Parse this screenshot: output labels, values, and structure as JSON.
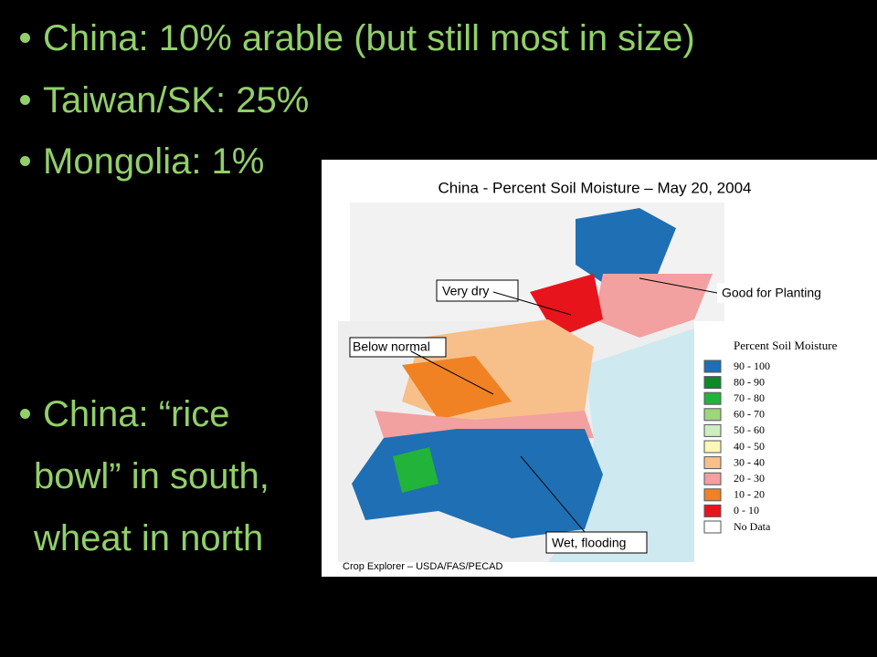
{
  "slide": {
    "bullets": [
      "China: 10% arable (but still most in size)",
      "Taiwan/SK: 25%",
      "Mongolia: 1%"
    ],
    "bullet2": [
      "China: “rice",
      "bowl” in south,",
      "wheat in north"
    ]
  },
  "map": {
    "title": "China - Percent Soil Moisture – May 20, 2004",
    "annotations": [
      "Very dry",
      "Good for Planting",
      "Below normal",
      "Wet, flooding"
    ],
    "legend": {
      "title": "Percent Soil Moisture",
      "items": [
        {
          "label": "90 - 100",
          "color": "#1f6fb5"
        },
        {
          "label": "80 - 90",
          "color": "#0a8a2a"
        },
        {
          "label": "70 - 80",
          "color": "#22b33a"
        },
        {
          "label": "60 - 70",
          "color": "#9fd67a"
        },
        {
          "label": "50 - 60",
          "color": "#cdeec0"
        },
        {
          "label": "40 - 50",
          "color": "#fbf7b8"
        },
        {
          "label": "30 - 40",
          "color": "#f7c08a"
        },
        {
          "label": "20 - 30",
          "color": "#f3a0a0"
        },
        {
          "label": "10 - 20",
          "color": "#f08224"
        },
        {
          "label": "0 - 10",
          "color": "#e8141c"
        },
        {
          "label": "No Data",
          "color": "#ffffff"
        }
      ]
    },
    "credit": "Crop Explorer – USDA/FAS/PECAD"
  }
}
